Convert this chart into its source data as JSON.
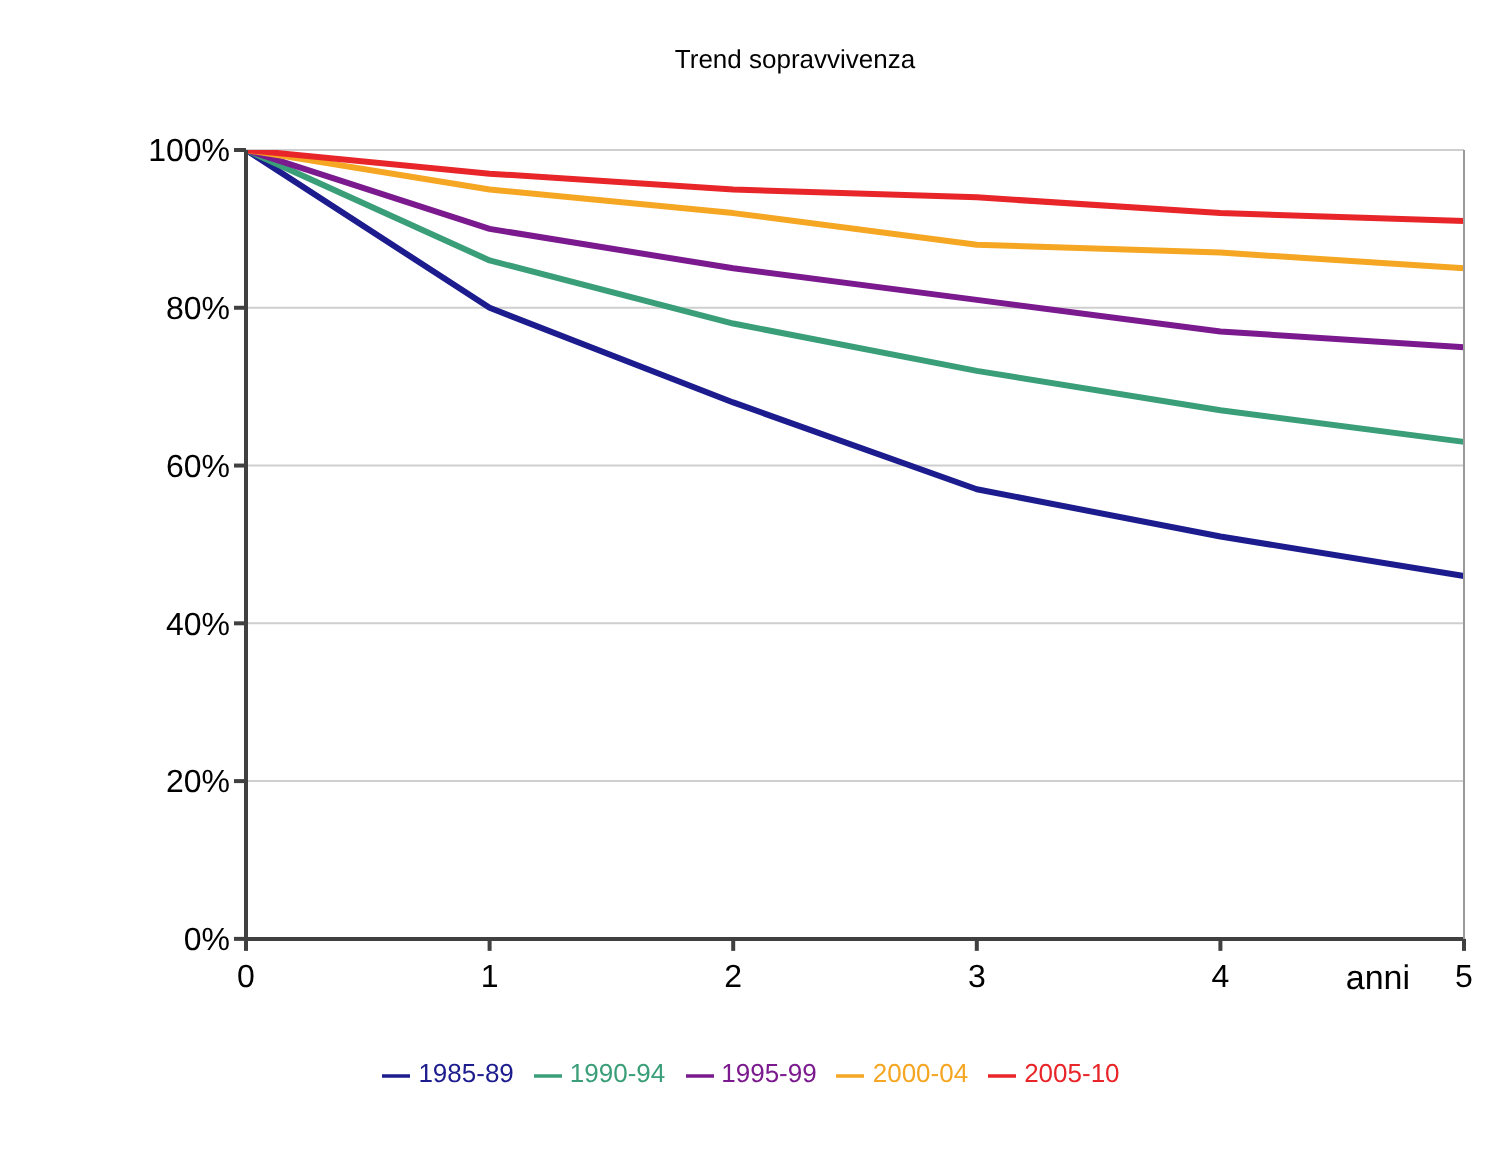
{
  "chart_data": {
    "type": "line",
    "title": "Trend sopravvivenza",
    "xlabel": "anni",
    "x": [
      0,
      1,
      2,
      3,
      4,
      5
    ],
    "series": [
      {
        "name": "1985-89",
        "color": "#1c1c8e",
        "values": [
          100,
          80,
          68,
          57,
          51,
          46
        ]
      },
      {
        "name": "1990-94",
        "color": "#3a9e78",
        "values": [
          100,
          86,
          78,
          72,
          67,
          63
        ]
      },
      {
        "name": "1995-99",
        "color": "#7b1a8e",
        "values": [
          100,
          90,
          85,
          81,
          77,
          75
        ]
      },
      {
        "name": "2000-04",
        "color": "#f5a623",
        "values": [
          100,
          95,
          92,
          88,
          87,
          85
        ]
      },
      {
        "name": "2005-10",
        "color": "#e8262a",
        "values": [
          100,
          97,
          95,
          94,
          92,
          91
        ]
      }
    ],
    "xlim": [
      0,
      5
    ],
    "xticks": [
      0,
      1,
      2,
      3,
      4,
      5
    ],
    "ylim": [
      0,
      100
    ],
    "yticks": [
      {
        "value": 0,
        "label": "0%"
      },
      {
        "value": 20,
        "label": "20%"
      },
      {
        "value": 40,
        "label": "40%"
      },
      {
        "value": 60,
        "label": "60%"
      },
      {
        "value": 80,
        "label": "80%"
      },
      {
        "value": 100,
        "label": "100%"
      }
    ],
    "grid": "y",
    "legend": "bottom",
    "marker": "none",
    "line_style": "solid"
  }
}
